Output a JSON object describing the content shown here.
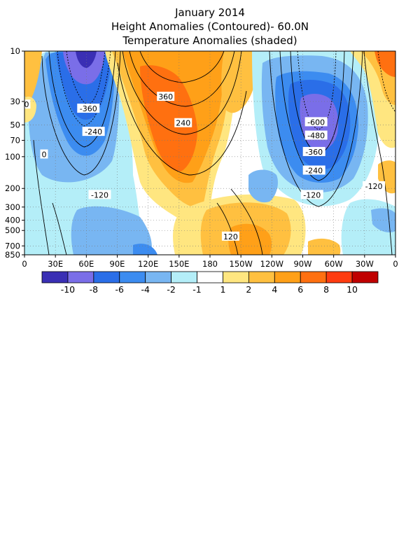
{
  "chart_data": {
    "type": "heatmap",
    "title": "January 2014",
    "subtitle_1": "Height Anomalies (Contoured)- 60.0N",
    "subtitle_2": "Temperature Anomalies (shaded)",
    "xlabel": "",
    "ylabel": "",
    "x_ticks": [
      "0",
      "30E",
      "60E",
      "90E",
      "120E",
      "150E",
      "180",
      "150W",
      "120W",
      "90W",
      "60W",
      "30W",
      "0"
    ],
    "y_ticks": [
      "10",
      "30",
      "50",
      "70",
      "100",
      "200",
      "300",
      "400",
      "500",
      "700",
      "850"
    ],
    "y_scale": "log (pressure hPa, decreasing upward)",
    "grid": true,
    "colorbar": {
      "labels": [
        "-10",
        "-8",
        "-6",
        "-4",
        "-2",
        "-1",
        "1",
        "2",
        "4",
        "6",
        "8",
        "10"
      ],
      "colors": [
        "#3a2fb4",
        "#7a6ee8",
        "#2a6ee8",
        "#3c8cf0",
        "#78b6f2",
        "#b4eef8",
        "#ffffff",
        "#ffe680",
        "#ffc040",
        "#ffa018",
        "#ff7010",
        "#ff3c10",
        "#c00000"
      ]
    },
    "temperature_centers": [
      {
        "lon": 60,
        "pressure": 12,
        "value": -10
      },
      {
        "lon": 290,
        "pressure": 60,
        "value": -8
      },
      {
        "lon": 140,
        "pressure": 70,
        "value": 6
      },
      {
        "lon": 350,
        "pressure": 10,
        "value": 6
      },
      {
        "lon": 210,
        "pressure": 600,
        "value": 4
      }
    ],
    "contour_labels": [
      {
        "text": "-360",
        "lon": 62,
        "pressure": 35
      },
      {
        "text": "-240",
        "lon": 67,
        "pressure": 58
      },
      {
        "text": "0",
        "lon": 19,
        "pressure": 95
      },
      {
        "text": "0",
        "lon": 2,
        "pressure": 32
      },
      {
        "text": "-120",
        "lon": 73,
        "pressure": 230
      },
      {
        "text": "360",
        "lon": 137,
        "pressure": 27
      },
      {
        "text": "240",
        "lon": 154,
        "pressure": 48
      },
      {
        "text": "120",
        "lon": 200,
        "pressure": 570
      },
      {
        "text": "-600",
        "lon": 283,
        "pressure": 47
      },
      {
        "text": "-480",
        "lon": 283,
        "pressure": 63
      },
      {
        "text": "-360",
        "lon": 281,
        "pressure": 90
      },
      {
        "text": "-240",
        "lon": 281,
        "pressure": 135
      },
      {
        "text": "-120",
        "lon": 279,
        "pressure": 230
      },
      {
        "text": "-120",
        "lon": 339,
        "pressure": 190
      }
    ]
  }
}
